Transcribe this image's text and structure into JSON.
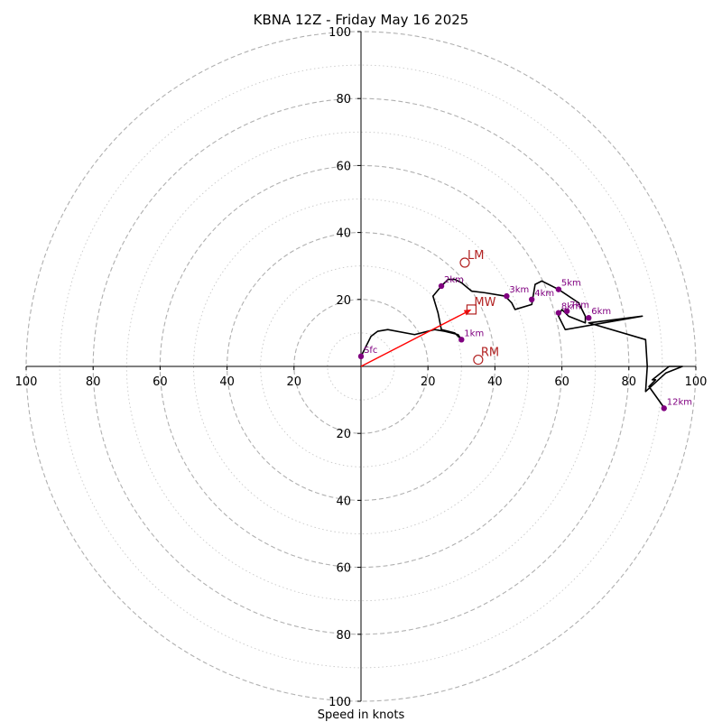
{
  "chart_data": {
    "type": "hodograph",
    "title": "KBNA 12Z - Friday May 16 2025",
    "xlabel": "Speed in knots",
    "range": [
      -100,
      100
    ],
    "ring_major_step": 20,
    "ring_minor_step": 10,
    "tick_labels": [
      "100",
      "80",
      "60",
      "40",
      "20",
      "20",
      "40",
      "60",
      "80",
      "100"
    ],
    "tick_values": [
      -100,
      -80,
      -60,
      -40,
      -20,
      20,
      40,
      60,
      80,
      100
    ],
    "colors": {
      "trace": "#000000",
      "height_marker": "#800080",
      "motion": "#b22222",
      "shear_vector": "#ff0000",
      "grid_major": "#b0b0b0",
      "grid_minor": "#c8c8c8"
    },
    "trace": [
      [
        0,
        3
      ],
      [
        1,
        5
      ],
      [
        3,
        9
      ],
      [
        5,
        10.5
      ],
      [
        8,
        11
      ],
      [
        16,
        9.5
      ],
      [
        22,
        11
      ],
      [
        25,
        10.5
      ],
      [
        29,
        9.5
      ],
      [
        30,
        8
      ],
      [
        28,
        10
      ],
      [
        24,
        11
      ],
      [
        23,
        16
      ],
      [
        21.5,
        21
      ],
      [
        24,
        24
      ],
      [
        26,
        26
      ],
      [
        28,
        26
      ],
      [
        30,
        25
      ],
      [
        33,
        22.5
      ],
      [
        37,
        22
      ],
      [
        43,
        21
      ],
      [
        45,
        19
      ],
      [
        46,
        17
      ],
      [
        51,
        18.5
      ],
      [
        52,
        24.5
      ],
      [
        54,
        25.5
      ],
      [
        59,
        23
      ],
      [
        65,
        19
      ],
      [
        67,
        15
      ],
      [
        67,
        13
      ],
      [
        62,
        15
      ],
      [
        60,
        17
      ],
      [
        59,
        15
      ],
      [
        61,
        11
      ],
      [
        84,
        15
      ],
      [
        68,
        13
      ],
      [
        85,
        8
      ],
      [
        85.5,
        0
      ],
      [
        85,
        -7.5
      ],
      [
        91,
        -2
      ],
      [
        96,
        0
      ],
      [
        92,
        0
      ],
      [
        87,
        -4
      ],
      [
        88,
        -4
      ],
      [
        86,
        -6
      ],
      [
        91,
        -13
      ]
    ],
    "height_markers": [
      {
        "label": "Sfc",
        "u": 0,
        "v": 3
      },
      {
        "label": "1km",
        "u": 30,
        "v": 8
      },
      {
        "label": "2km",
        "u": 24,
        "v": 24
      },
      {
        "label": "3km",
        "u": 43.5,
        "v": 21
      },
      {
        "label": "4km",
        "u": 51,
        "v": 20
      },
      {
        "label": "5km",
        "u": 59,
        "v": 23
      },
      {
        "label": "6km",
        "u": 68,
        "v": 14.5
      },
      {
        "label": "7km",
        "u": 61.5,
        "v": 16.5
      },
      {
        "label": "8km",
        "u": 59,
        "v": 16
      },
      {
        "label": "12km",
        "u": 90.5,
        "v": -12.5
      }
    ],
    "storm_motion": [
      {
        "label": "LM",
        "u": 31,
        "v": 31,
        "shape": "circle"
      },
      {
        "label": "MW",
        "u": 33,
        "v": 17,
        "shape": "square"
      },
      {
        "label": "RM",
        "u": 35,
        "v": 2,
        "shape": "circle"
      }
    ],
    "shear_vector": {
      "from": [
        0,
        0
      ],
      "to": [
        33,
        17
      ]
    }
  }
}
